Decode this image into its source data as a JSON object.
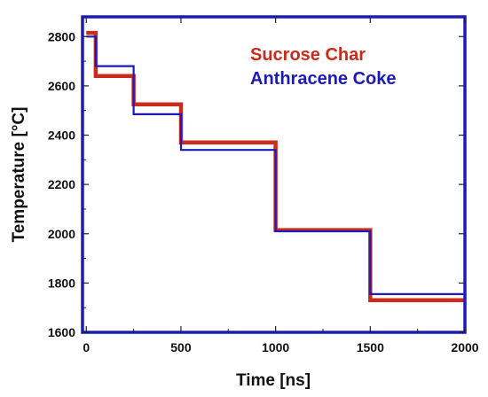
{
  "chart_data": {
    "type": "line",
    "title": "",
    "xlabel": "Time [ns]",
    "ylabel": "Temperature [°C]",
    "xlim": [
      -20,
      2000
    ],
    "ylim": [
      1600,
      2880
    ],
    "xticks": [
      0,
      500,
      1000,
      1500,
      2000
    ],
    "yticks": [
      1600,
      1800,
      2000,
      2200,
      2400,
      2600,
      2800
    ],
    "xtick_labels": [
      "0",
      "500",
      "1000",
      "1500",
      "2000"
    ],
    "ytick_labels": [
      "1600",
      "1800",
      "2000",
      "2200",
      "2400",
      "2600",
      "2800"
    ],
    "legend_position": "top-right",
    "grid": false,
    "step": true,
    "series": [
      {
        "name": "Sucrose Char",
        "color": "#cc2a1a",
        "x": [
          0,
          50,
          250,
          500,
          1000,
          1500,
          2000
        ],
        "y": [
          2815,
          2640,
          2525,
          2370,
          2015,
          1730,
          1730
        ]
      },
      {
        "name": "Anthracene Coke",
        "color": "#1c1ab8",
        "x": [
          0,
          50,
          250,
          500,
          1000,
          1500,
          2000
        ],
        "y": [
          2800,
          2680,
          2485,
          2340,
          2010,
          1755,
          1755
        ]
      }
    ]
  },
  "frame_color": "#1c1ab8"
}
